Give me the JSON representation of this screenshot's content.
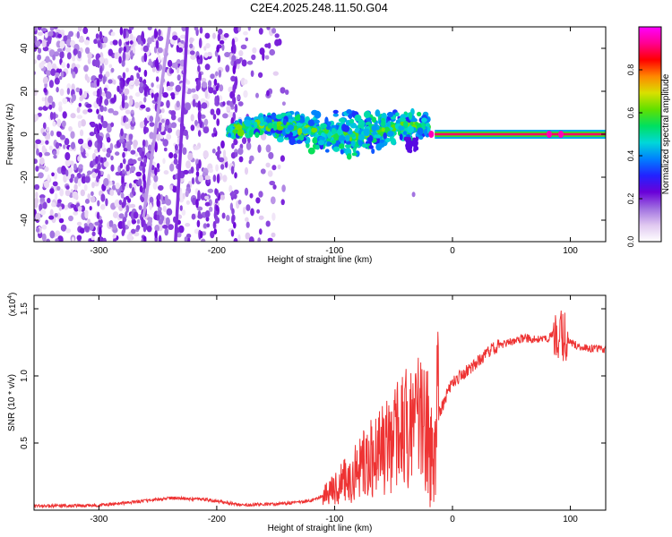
{
  "figure_title": "C2E4.2025.248.11.50.G04",
  "chart_data": [
    {
      "type": "heatmap",
      "title": "C2E4.2025.248.11.50.G04",
      "xlabel": "Height of straight line (km)",
      "ylabel": "Frequency (Hz)",
      "xlim": [
        -355,
        130
      ],
      "ylim": [
        -50,
        50
      ],
      "xticks": [
        -300,
        -200,
        -100,
        0,
        100
      ],
      "yticks": [
        -40,
        -20,
        0,
        20,
        40
      ],
      "colorbar": {
        "label": "Normalized spectral amplitude",
        "range": [
          0.0,
          1.0
        ],
        "ticks": [
          0.0,
          0.2,
          0.4,
          0.6,
          0.8
        ],
        "colormap": [
          "#ffffff",
          "#e0c8f0",
          "#a070e0",
          "#6a00d8",
          "#2222ff",
          "#0080ff",
          "#00d8d8",
          "#00e060",
          "#60e000",
          "#d8e000",
          "#ff8800",
          "#ff0000",
          "#ff0090",
          "#ff00ff"
        ]
      },
      "features": [
        {
          "name": "diagonal streak A",
          "x": [
            -235,
            -225
          ],
          "y": [
            -50,
            50
          ],
          "amplitude": 0.2
        },
        {
          "name": "diagonal streak B",
          "x": [
            -262,
            -240
          ],
          "y": [
            -38,
            50
          ],
          "amplitude": 0.12
        },
        {
          "name": "carrier line",
          "x": [
            -15,
            130
          ],
          "y": [
            0,
            0
          ],
          "amplitude": 0.9
        },
        {
          "name": "signal blob",
          "x": [
            -190,
            -20
          ],
          "y": [
            -8,
            10
          ],
          "amplitude": 0.45
        }
      ],
      "noise_region": {
        "x": [
          -355,
          -140
        ],
        "y": [
          -50,
          50
        ],
        "amplitude": 0.1
      }
    },
    {
      "type": "line",
      "xlabel": "Height of straight line (km)",
      "ylabel": "SNR (10 * v/v)",
      "y_multiplier": "(x10",
      "y_multiplier_exp": "4",
      "y_multiplier_close": ")",
      "xlim": [
        -355,
        130
      ],
      "ylim": [
        0,
        16000
      ],
      "xticks": [
        -300,
        -200,
        -100,
        0,
        100
      ],
      "yticks": [
        5000,
        10000,
        15000
      ],
      "ytick_labels": [
        "0.5",
        "1.0",
        "1.5"
      ],
      "series": [
        {
          "name": "SNR",
          "color": "#ee3333",
          "x": [
            -355,
            -300,
            -270,
            -240,
            -210,
            -180,
            -150,
            -120,
            -100,
            -80,
            -60,
            -40,
            -30,
            -20,
            -10,
            0,
            10,
            20,
            30,
            40,
            60,
            80,
            90,
            100,
            110,
            130
          ],
          "y": [
            300,
            350,
            600,
            900,
            800,
            400,
            450,
            700,
            1500,
            3000,
            4500,
            6000,
            6500,
            5500,
            7500,
            9500,
            10200,
            11000,
            11800,
            12300,
            12800,
            12700,
            13500,
            12500,
            12100,
            12000
          ]
        }
      ]
    }
  ]
}
